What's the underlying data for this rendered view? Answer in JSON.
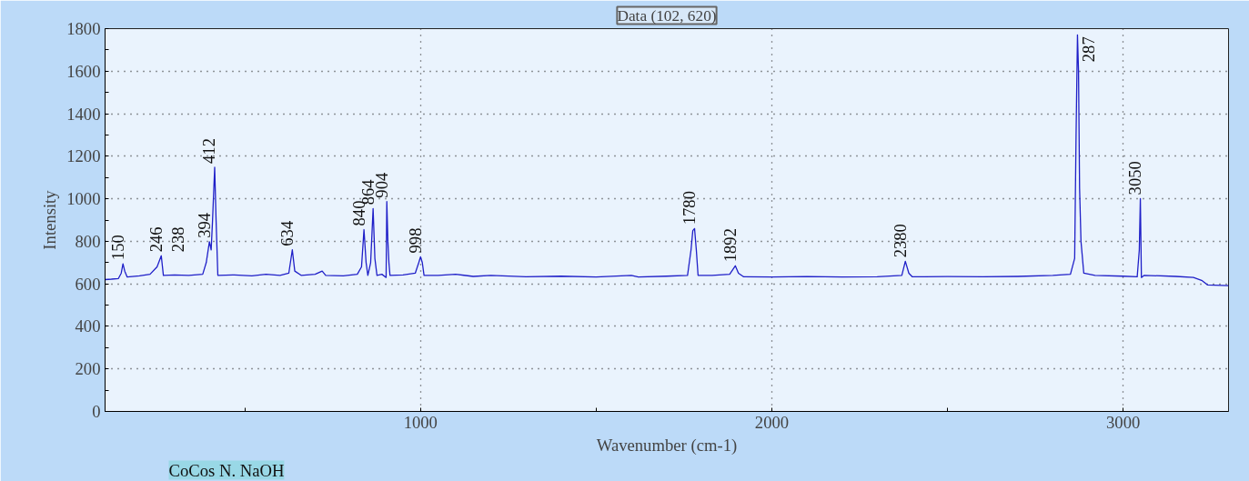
{
  "chart_data": {
    "type": "line",
    "title": "Data (102, 620)",
    "xlabel": "Wavenumber (cm-1)",
    "ylabel": "Intensity",
    "xlim": [
      102,
      3300
    ],
    "ylim": [
      0,
      1800
    ],
    "xticks": [
      {
        "value": 500,
        "label": null
      },
      1000,
      {
        "value": 1500,
        "label": null
      },
      2000,
      {
        "value": 2500,
        "label": null
      },
      3000
    ],
    "yticks": [
      0,
      {
        "value": 100,
        "label": null
      },
      200,
      {
        "value": 300,
        "label": null
      },
      400,
      {
        "value": 500,
        "label": null
      },
      600,
      {
        "value": 700,
        "label": null
      },
      800,
      {
        "value": 900,
        "label": null
      },
      1000,
      {
        "value": 1100,
        "label": null
      },
      1200,
      {
        "value": 1300,
        "label": null
      },
      1400,
      {
        "value": 1500,
        "label": null
      },
      1600,
      {
        "value": 1700,
        "label": null
      },
      1800
    ],
    "grid": true,
    "marker": "none",
    "line_style": "solid",
    "series": [
      {
        "color": "#1f1fc8",
        "x": [
          102,
          120,
          140,
          148,
          153,
          158,
          165,
          200,
          230,
          250,
          262,
          268,
          300,
          340,
          380,
          390,
          399,
          404,
          408,
          414,
          418,
          423,
          470,
          520,
          560,
          600,
          625,
          635,
          642,
          660,
          700,
          720,
          730,
          780,
          820,
          832,
          839,
          845,
          850,
          858,
          865,
          870,
          876,
          890,
          902,
          904,
          907,
          910,
          913,
          950,
          985,
          995,
          1000,
          1005,
          1010,
          1050,
          1100,
          1150,
          1200,
          1300,
          1400,
          1500,
          1600,
          1620,
          1700,
          1760,
          1770,
          1775,
          1780,
          1785,
          1790,
          1830,
          1880,
          1896,
          1905,
          1920,
          2000,
          2100,
          2200,
          2300,
          2370,
          2380,
          2390,
          2400,
          2500,
          2600,
          2700,
          2800,
          2850,
          2862,
          2866,
          2870,
          2873,
          2876,
          2880,
          2888,
          2920,
          3000,
          3040,
          3046,
          3049,
          3052,
          3060,
          3150,
          3200,
          3225,
          3240,
          3300
        ],
        "values": [
          620,
          622,
          625,
          650,
          694,
          660,
          632,
          638,
          645,
          680,
          732,
          640,
          642,
          640,
          645,
          700,
          798,
          760,
          900,
          1148,
          900,
          640,
          642,
          638,
          645,
          640,
          650,
          760,
          660,
          640,
          645,
          660,
          640,
          638,
          645,
          680,
          855,
          700,
          640,
          700,
          954,
          720,
          640,
          645,
          630,
          987,
          800,
          700,
          640,
          642,
          650,
          700,
          727,
          700,
          640,
          640,
          645,
          635,
          640,
          633,
          636,
          632,
          640,
          632,
          636,
          640,
          760,
          850,
          860,
          760,
          640,
          640,
          645,
          685,
          650,
          633,
          632,
          634,
          632,
          633,
          640,
          706,
          650,
          633,
          634,
          633,
          635,
          640,
          645,
          720,
          1300,
          1771,
          1600,
          1050,
          800,
          650,
          640,
          636,
          633,
          760,
          1001,
          630,
          640,
          635,
          630,
          615,
          595,
          592
        ]
      }
    ],
    "annotations": [
      "CoCos N. NaOH",
      {
        "text": "150",
        "x": 153,
        "y": 694
      },
      {
        "text": "246",
        "x": 262,
        "y": 732
      },
      {
        "text": "238",
        "x": 262,
        "y": 732
      },
      {
        "text": "394",
        "x": 399,
        "y": 798
      },
      {
        "text": "412",
        "x": 414,
        "y": 1148
      },
      {
        "text": "634",
        "x": 635,
        "y": 760
      },
      {
        "text": "840",
        "x": 839,
        "y": 855
      },
      {
        "text": "864",
        "x": 865,
        "y": 954
      },
      {
        "text": "904",
        "x": 904,
        "y": 987
      },
      {
        "text": "998",
        "x": 1000,
        "y": 727
      },
      {
        "text": "1892",
        "x": 1896,
        "y": 685
      },
      {
        "text": "1780",
        "x": 1780,
        "y": 860
      },
      {
        "text": "2380",
        "x": 2380,
        "y": 706
      },
      {
        "text": "287",
        "x": 2870,
        "y": 1771
      },
      {
        "text": "3050",
        "x": 3049,
        "y": 1001
      }
    ]
  }
}
